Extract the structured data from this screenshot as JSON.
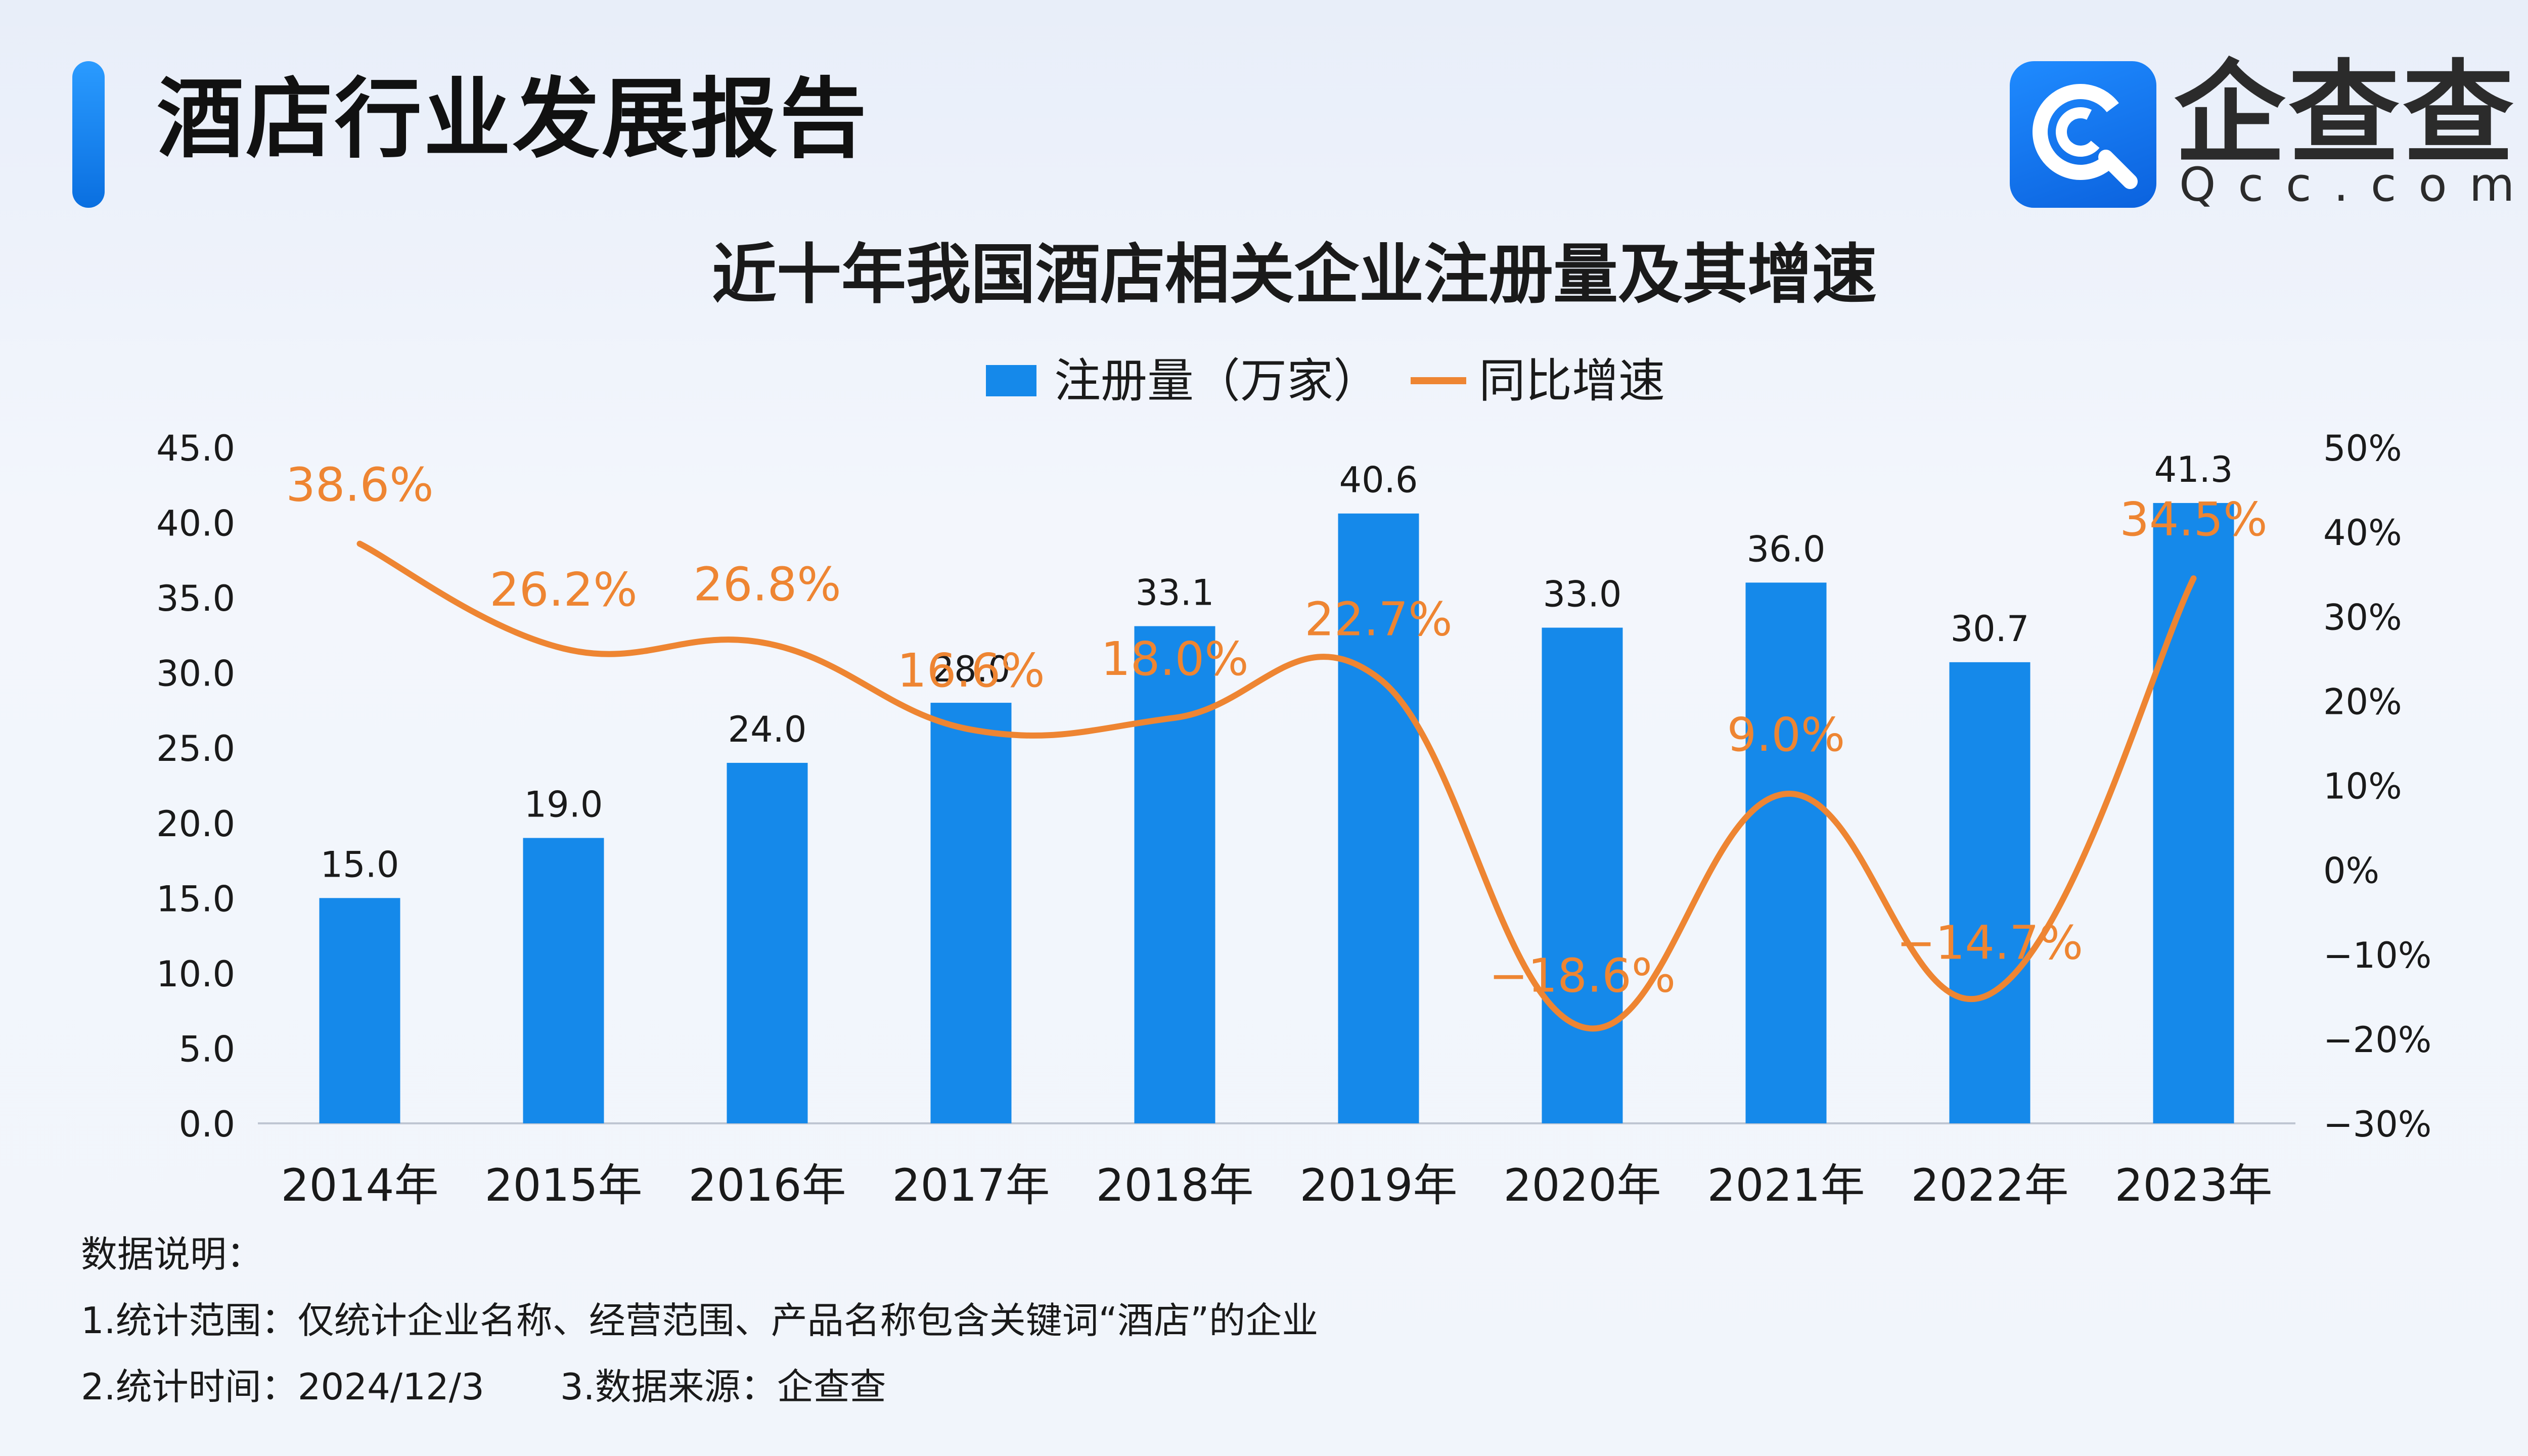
{
  "header": {
    "title": "酒店行业发展报告",
    "logo_cn": "企查查",
    "logo_en": "Qcc.com",
    "logo_icon": "qcc-logo-icon"
  },
  "colors": {
    "bar": "#1589EA",
    "line": "#EE8532",
    "accent": "#1A80F2"
  },
  "notes": {
    "heading": "数据说明：",
    "line1": "1.统计范围：仅统计企业名称、经营范围、产品名称包含关键词“酒店”的企业",
    "line2a": "2.统计时间：2024/12/3",
    "line2b": "3.数据来源：企查查"
  },
  "chart_data": {
    "type": "bar",
    "title": "近十年我国酒店相关企业注册量及其增速",
    "categories": [
      "2014年",
      "2015年",
      "2016年",
      "2017年",
      "2018年",
      "2019年",
      "2020年",
      "2021年",
      "2022年",
      "2023年"
    ],
    "series": [
      {
        "name": "注册量（万家）",
        "type": "bar",
        "axis": "left",
        "values": [
          15.0,
          19.0,
          24.0,
          28.0,
          33.1,
          40.6,
          33.0,
          36.0,
          30.7,
          41.3
        ],
        "labels": [
          "15.0",
          "19.0",
          "24.0",
          "28.0",
          "33.1",
          "40.6",
          "33.0",
          "36.0",
          "30.7",
          "41.3"
        ]
      },
      {
        "name": "同比增速",
        "type": "line",
        "axis": "right",
        "smooth": true,
        "values": [
          38.6,
          26.2,
          26.8,
          16.6,
          18.0,
          22.7,
          -18.6,
          9.0,
          -14.7,
          34.5
        ],
        "labels": [
          "38.6%",
          "26.2%",
          "26.8%",
          "16.6%",
          "18.0%",
          "22.7%",
          "−18.6%",
          "9.0%",
          "−14.7%",
          "34.5%"
        ]
      }
    ],
    "left_axis": {
      "ylim": [
        0,
        45
      ],
      "ticks": [
        "0.0",
        "5.0",
        "10.0",
        "15.0",
        "20.0",
        "25.0",
        "30.0",
        "35.0",
        "40.0",
        "45.0"
      ]
    },
    "right_axis": {
      "ylim": [
        -30,
        50
      ],
      "ticks": [
        "−30%",
        "−20%",
        "−10%",
        "0%",
        "10%",
        "20%",
        "30%",
        "40%",
        "50%"
      ]
    },
    "legend_position": "top-center",
    "grid": false
  }
}
